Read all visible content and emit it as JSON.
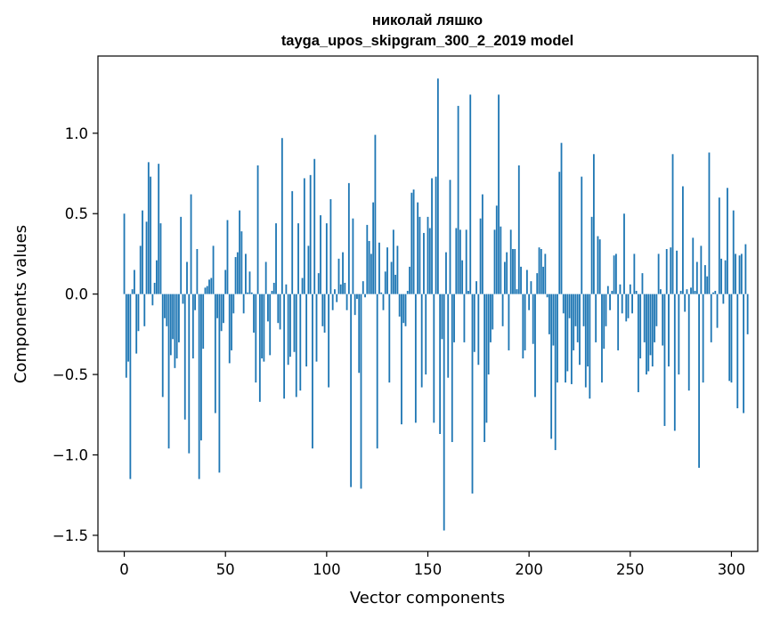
{
  "chart_data": {
    "type": "bar",
    "title": "николай ляшко",
    "subtitle": "tayga_upos_skipgram_300_2_2019 model",
    "xlabel": "Vector components",
    "ylabel": "Components values",
    "xlim": [
      -13,
      313
    ],
    "ylim": [
      -1.6,
      1.48
    ],
    "xticks": [
      0,
      50,
      100,
      150,
      200,
      250,
      300
    ],
    "yticks": [
      -1.5,
      -1.0,
      -0.5,
      0.0,
      0.5,
      1.0
    ],
    "ytick_labels": [
      "−1.5",
      "−1.0",
      "−0.5",
      "0.0",
      "0.5",
      "1.0"
    ],
    "bar_color": "#1f77b4",
    "grid": false,
    "values": [
      0.5,
      -0.52,
      -0.42,
      -1.15,
      0.03,
      0.15,
      -0.37,
      -0.23,
      0.3,
      0.52,
      -0.2,
      0.45,
      0.82,
      0.73,
      -0.07,
      0.07,
      0.21,
      0.81,
      0.44,
      -0.64,
      -0.15,
      -0.2,
      -0.96,
      -0.38,
      -0.28,
      -0.46,
      -0.4,
      -0.3,
      0.48,
      -0.06,
      -0.78,
      0.2,
      -0.99,
      0.62,
      -0.4,
      -0.1,
      0.28,
      -1.15,
      -0.91,
      -0.34,
      0.04,
      0.05,
      0.09,
      0.1,
      0.3,
      -0.74,
      -0.15,
      -1.11,
      -0.23,
      -0.18,
      0.15,
      0.46,
      -0.43,
      -0.35,
      -0.12,
      0.23,
      0.26,
      0.52,
      0.39,
      -0.12,
      0.25,
      0.01,
      0.14,
      0.01,
      -0.24,
      -0.55,
      0.8,
      -0.67,
      -0.4,
      -0.42,
      0.2,
      -0.17,
      -0.38,
      0.02,
      0.07,
      0.44,
      -0.18,
      -0.22,
      0.97,
      -0.65,
      0.06,
      -0.44,
      -0.39,
      0.64,
      -0.36,
      -0.64,
      0.44,
      -0.6,
      0.1,
      0.72,
      -0.45,
      0.3,
      0.74,
      -0.96,
      0.84,
      -0.42,
      0.13,
      0.49,
      -0.2,
      -0.24,
      0.44,
      -0.58,
      0.59,
      -0.1,
      0.03,
      -0.05,
      0.22,
      0.06,
      0.26,
      0.07,
      -0.1,
      0.69,
      -1.2,
      0.47,
      -0.13,
      -0.03,
      -0.49,
      -1.21,
      0.08,
      -0.02,
      0.43,
      0.33,
      0.25,
      0.57,
      0.99,
      -0.96,
      0.32,
      0.01,
      -0.1,
      0.14,
      0.29,
      -0.55,
      0.2,
      0.4,
      0.12,
      0.3,
      -0.14,
      -0.81,
      -0.18,
      -0.2,
      0.02,
      0.17,
      0.63,
      0.65,
      -0.8,
      0.57,
      0.48,
      -0.58,
      0.38,
      -0.5,
      0.48,
      0.41,
      0.72,
      -0.8,
      0.73,
      1.34,
      -0.87,
      -0.28,
      -1.47,
      0.26,
      -0.52,
      0.71,
      -0.92,
      -0.3,
      0.41,
      1.17,
      0.4,
      0.21,
      -0.3,
      0.4,
      0.02,
      1.24,
      -1.24,
      -0.36,
      0.08,
      -0.44,
      0.47,
      0.62,
      -0.92,
      -0.8,
      -0.5,
      -0.3,
      -0.22,
      0.4,
      0.55,
      1.24,
      0.42,
      -0.2,
      0.2,
      0.26,
      -0.35,
      0.4,
      0.28,
      0.28,
      0.03,
      0.8,
      0.17,
      -0.4,
      -0.35,
      0.15,
      -0.1,
      0.08,
      -0.31,
      -0.64,
      0.13,
      0.29,
      0.28,
      0.17,
      0.25,
      -0.02,
      -0.25,
      -0.9,
      -0.32,
      -0.97,
      -0.55,
      0.76,
      0.94,
      -0.12,
      -0.55,
      -0.48,
      -0.15,
      -0.56,
      -0.35,
      -0.2,
      -0.3,
      -0.44,
      0.73,
      -0.2,
      -0.58,
      -0.45,
      -0.65,
      0.48,
      0.87,
      -0.3,
      0.36,
      0.34,
      -0.55,
      -0.34,
      -0.2,
      0.05,
      -0.1,
      0.02,
      0.24,
      0.25,
      -0.35,
      0.06,
      -0.12,
      0.5,
      -0.17,
      -0.15,
      0.06,
      -0.12,
      0.25,
      0.02,
      -0.61,
      -0.4,
      0.13,
      -0.3,
      -0.5,
      -0.48,
      -0.38,
      -0.45,
      -0.3,
      -0.2,
      0.25,
      0.03,
      -0.32,
      -0.82,
      0.28,
      -0.45,
      0.29,
      0.87,
      -0.85,
      0.27,
      -0.5,
      0.02,
      0.67,
      -0.11,
      0.03,
      -0.6,
      0.04,
      0.35,
      0.02,
      0.2,
      -1.08,
      0.3,
      -0.55,
      0.18,
      0.11,
      0.88,
      -0.3,
      0.01,
      0.02,
      -0.21,
      0.6,
      0.22,
      -0.06,
      0.21,
      0.66,
      -0.54,
      -0.55,
      0.52,
      0.25,
      -0.71,
      0.24,
      0.25,
      -0.74,
      0.31,
      -0.25
    ]
  }
}
